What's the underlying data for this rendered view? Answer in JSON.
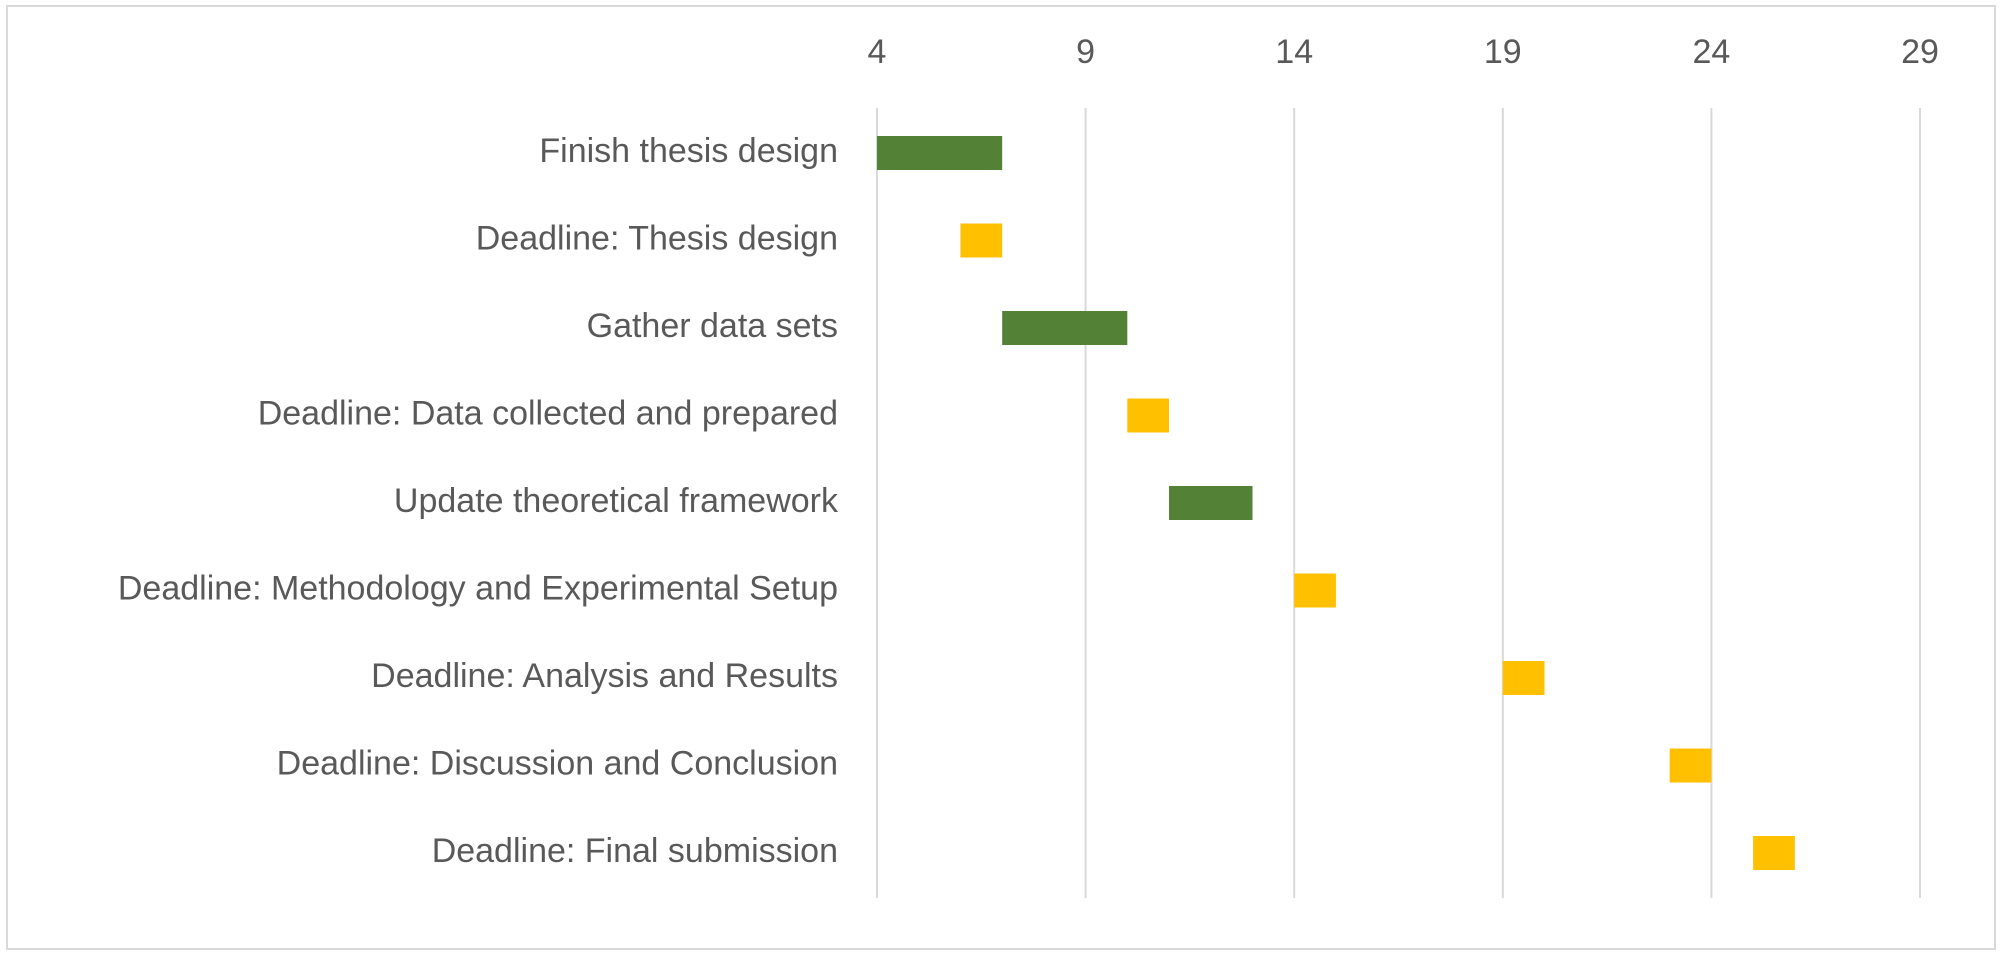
{
  "chart_data": {
    "type": "bar",
    "orientation": "horizontal",
    "subtype": "gantt",
    "title": "",
    "xlabel": "",
    "ylabel": "",
    "xlim": [
      4,
      29
    ],
    "x_ticks": [
      4,
      9,
      14,
      19,
      24,
      29
    ],
    "x_axis_position": "top",
    "grid": true,
    "legend": "none",
    "colors": {
      "task": "#538135",
      "deadline": "#FFC000",
      "gridline": "#d9d9d9",
      "text": "#595959"
    },
    "tasks": [
      {
        "label": "Finish thesis design",
        "start": 4,
        "end": 7,
        "kind": "task"
      },
      {
        "label": "Deadline: Thesis design",
        "start": 6,
        "end": 7,
        "kind": "deadline"
      },
      {
        "label": "Gather data sets",
        "start": 7,
        "end": 10,
        "kind": "task"
      },
      {
        "label": "Deadline: Data collected and prepared",
        "start": 10,
        "end": 11,
        "kind": "deadline"
      },
      {
        "label": "Update theoretical framework",
        "start": 11,
        "end": 13,
        "kind": "task"
      },
      {
        "label": "Deadline: Methodology and Experimental Setup",
        "start": 14,
        "end": 15,
        "kind": "deadline"
      },
      {
        "label": "Deadline: Analysis and Results ",
        "start": 19,
        "end": 20,
        "kind": "deadline"
      },
      {
        "label": "Deadline: Discussion and Conclusion",
        "start": 23,
        "end": 24,
        "kind": "deadline"
      },
      {
        "label": "Deadline: Final submission",
        "start": 25,
        "end": 26,
        "kind": "deadline"
      }
    ]
  }
}
